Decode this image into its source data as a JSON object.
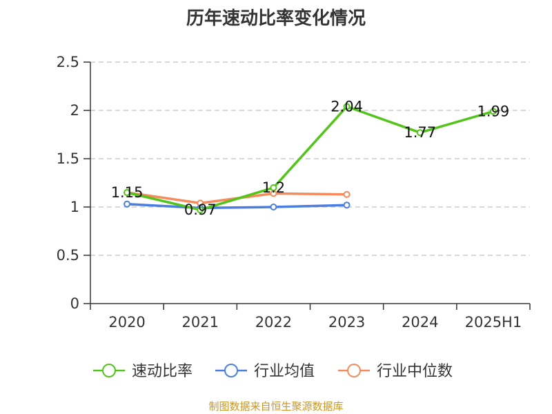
{
  "chart_data": {
    "type": "line",
    "title": "历年速动比率变化情况",
    "categories": [
      "2020",
      "2021",
      "2022",
      "2023",
      "2024",
      "2025H1"
    ],
    "ylim": [
      0,
      2.5
    ],
    "yticks": [
      "0",
      "0.5",
      "1",
      "1.5",
      "2",
      "2.5"
    ],
    "grid": true,
    "legend_position": "bottom",
    "series": [
      {
        "name": "速动比率",
        "color": "#52c41a",
        "values": [
          1.15,
          0.97,
          1.2,
          2.04,
          1.77,
          1.99
        ],
        "labels": [
          "1.15",
          "0.97",
          "1.2",
          "2.04",
          "1.77",
          "1.99"
        ],
        "show_labels": true
      },
      {
        "name": "行业均值",
        "color": "#4a7ee0",
        "values": [
          1.03,
          0.99,
          1.0,
          1.02,
          null,
          null
        ],
        "show_labels": false
      },
      {
        "name": "行业中位数",
        "color": "#f58a5a",
        "values": [
          1.15,
          1.04,
          1.14,
          1.13,
          null,
          null
        ],
        "show_labels": false
      }
    ]
  },
  "source_note": "制图数据来自恒生聚源数据库"
}
